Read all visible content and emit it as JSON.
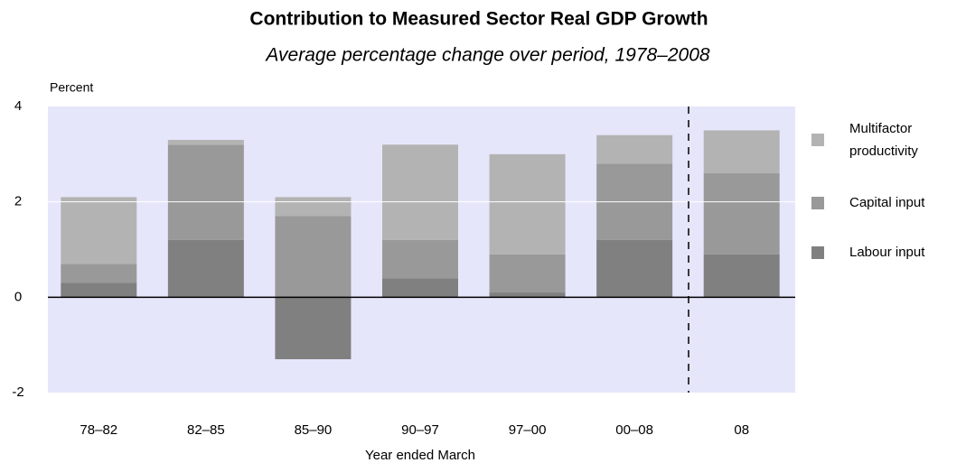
{
  "chart_data": {
    "type": "stacked_bar",
    "title": "Contribution to Measured Sector Real GDP Growth",
    "subtitle": "Average percentage change over period, 1978–2008",
    "y_axis_label": "Percent",
    "x_axis_label": "Year ended March",
    "categories": [
      "78–82",
      "82–85",
      "85–90",
      "90–97",
      "97–00",
      "00–08",
      "08"
    ],
    "series": [
      {
        "name": "Labour input",
        "color": "#808080",
        "values": [
          0.3,
          1.2,
          -1.3,
          0.4,
          0.1,
          1.2,
          0.9
        ]
      },
      {
        "name": "Capital input",
        "color": "#999999",
        "values": [
          0.4,
          2.0,
          1.7,
          0.8,
          0.8,
          1.6,
          1.7
        ]
      },
      {
        "name": "Multifactor productivity",
        "color": "#b3b3b3",
        "values": [
          1.4,
          0.1,
          0.4,
          2.0,
          2.1,
          0.6,
          0.9
        ]
      }
    ],
    "ylim": [
      -2,
      4
    ],
    "yticks": [
      -2,
      0,
      2,
      4
    ],
    "grid": true,
    "legend": "right"
  }
}
